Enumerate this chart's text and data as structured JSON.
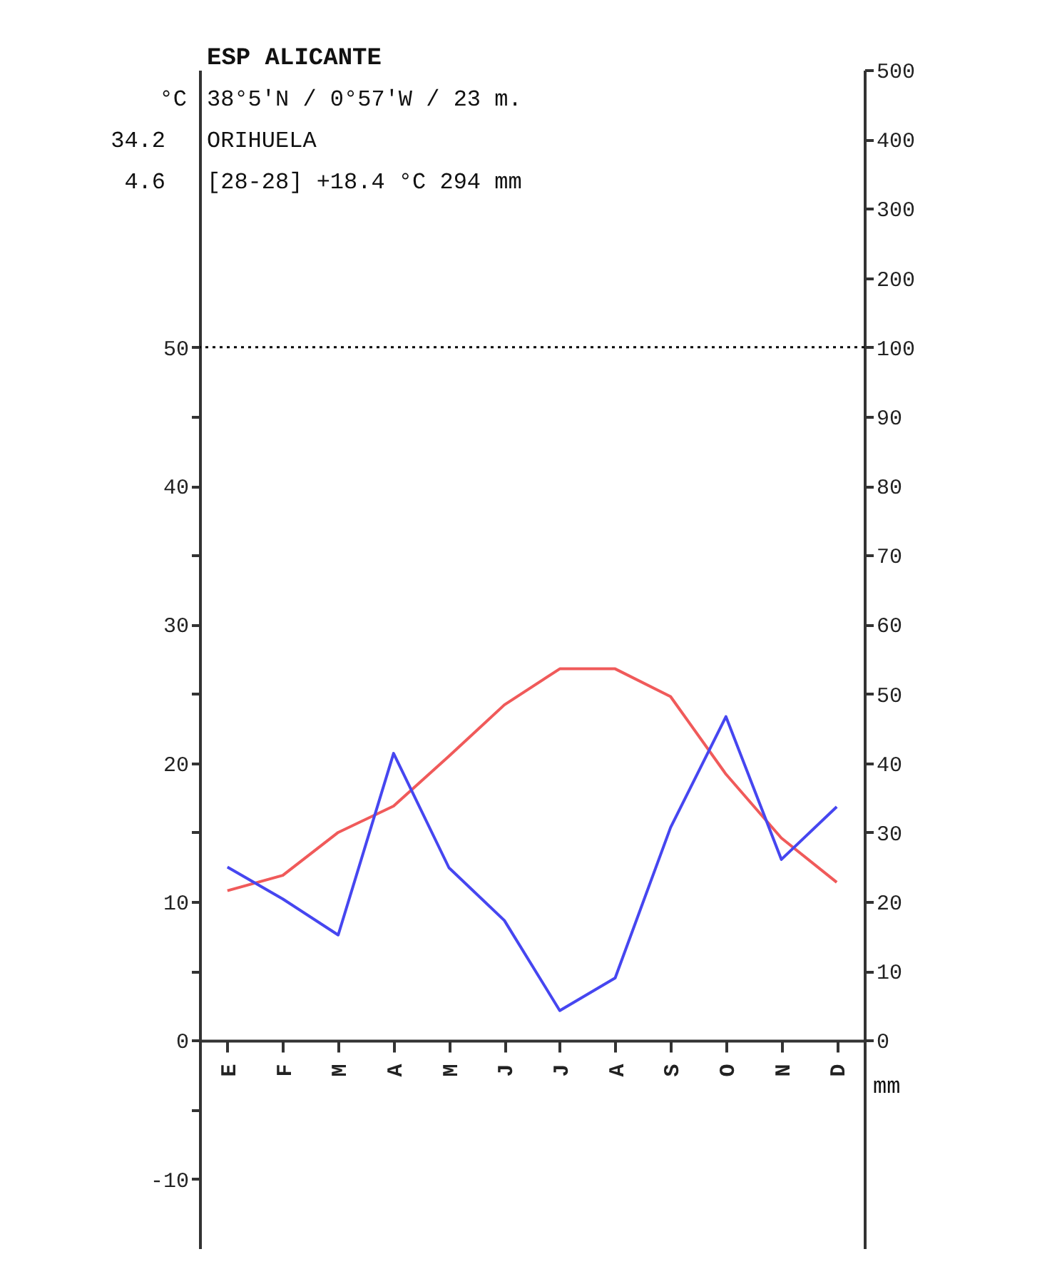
{
  "chart_data": {
    "type": "line",
    "title": "ESP ALICANTE",
    "ylabel": "°C",
    "y2label": "mm",
    "annotations": [
      "38°5'N / 0°57'W / 23 m.",
      "34.2",
      "ORIHUELA",
      "4.6",
      "[28-28]   +18.4 °C  294 mm"
    ],
    "categories": [
      "E",
      "F",
      "M",
      "A",
      "M",
      "J",
      "J",
      "A",
      "S",
      "O",
      "N",
      "D"
    ],
    "ylim": [
      -15,
      70
    ],
    "yticks": [
      -10,
      {
        "value": -5,
        "label": null
      },
      0,
      {
        "value": 5,
        "label": null
      },
      10,
      {
        "value": 15,
        "label": null
      },
      20,
      {
        "value": 25,
        "label": null
      },
      30,
      {
        "value": 35,
        "label": null
      },
      40,
      {
        "value": 45,
        "label": null
      },
      50
    ],
    "y2lim": [
      -30,
      140
    ],
    "y2ticks": [
      0,
      10,
      20,
      30,
      40,
      50,
      60,
      70,
      80,
      90,
      100
    ],
    "y3lim": [
      -1200,
      500
    ],
    "y3ticks": [
      200,
      300,
      400,
      500
    ],
    "grid": false,
    "marker": "none",
    "ref_lines": [
      {
        "axis": "y",
        "value": 50,
        "label": null,
        "color": "#000000",
        "line_style": "dotted"
      }
    ],
    "series": [
      {
        "color": "#f05a5a",
        "values": [
          10.8,
          11.9,
          15.0,
          16.9,
          20.5,
          24.2,
          26.8,
          26.8,
          24.8,
          19.2,
          14.6,
          11.4
        ]
      },
      {
        "color": "#4646f0",
        "axis": "y2",
        "values": [
          25.0,
          20.4,
          15.2,
          41.4,
          24.9,
          17.3,
          4.3,
          9.0,
          30.7,
          46.7,
          26.1,
          33.7
        ]
      }
    ]
  }
}
